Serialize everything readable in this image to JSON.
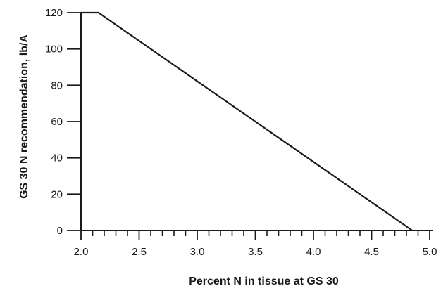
{
  "chart_data": {
    "type": "line",
    "title": "",
    "xlabel": "Percent N in tissue at GS 30",
    "ylabel": "GS 30 N recommendation, lb/A",
    "xlim": [
      2.0,
      5.0
    ],
    "ylim": [
      0,
      120
    ],
    "x_major_ticks": [
      2.0,
      2.5,
      3.0,
      3.5,
      4.0,
      4.5,
      5.0
    ],
    "x_tick_labels": [
      "2.0",
      "2.5",
      "3.0",
      "3.5",
      "4.0",
      "4.5",
      "5.0"
    ],
    "x_minor_step": 0.1,
    "y_major_ticks": [
      0,
      20,
      40,
      60,
      80,
      100,
      120
    ],
    "y_tick_labels": [
      "0",
      "20",
      "40",
      "60",
      "80",
      "100",
      "120"
    ],
    "grid": false,
    "legend": "none",
    "series": [
      {
        "color": "#1a1a1a",
        "points": [
          {
            "x": 2.0,
            "y": 120
          },
          {
            "x": 2.15,
            "y": 120
          },
          {
            "x": 4.85,
            "y": 0
          }
        ]
      }
    ]
  }
}
